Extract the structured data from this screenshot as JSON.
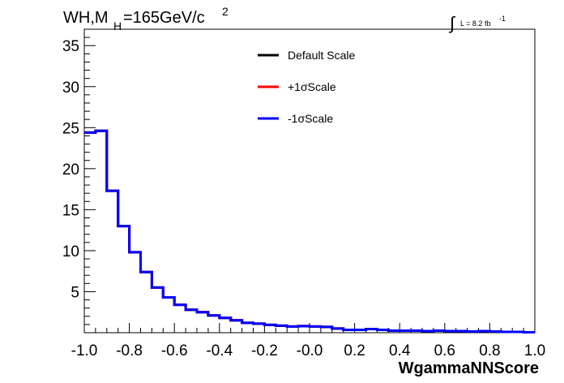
{
  "chart_data": {
    "type": "line",
    "title_parts": {
      "main": "WH,M",
      "sub": "H",
      "rest": "=165GeV/c",
      "sup": "2"
    },
    "lumi": {
      "integral": "∫",
      "text": "L = 8.2 fb",
      "sup": "-1"
    },
    "xlabel": "WgammaNNScore",
    "ylabel": "",
    "xlim": [
      -1.0,
      1.0
    ],
    "ylim": [
      0,
      37
    ],
    "x_ticks": [
      "-1.0",
      "-0.8",
      "-0.6",
      "-0.4",
      "-0.2",
      "-0.0",
      "0.2",
      "0.4",
      "0.6",
      "0.8",
      "1.0"
    ],
    "y_ticks": [
      "5",
      "10",
      "15",
      "20",
      "25",
      "30",
      "35"
    ],
    "bin_edges": [
      -1.0,
      -0.95,
      -0.9,
      -0.85,
      -0.8,
      -0.75,
      -0.7,
      -0.65,
      -0.6,
      -0.55,
      -0.5,
      -0.45,
      -0.4,
      -0.35,
      -0.3,
      -0.25,
      -0.2,
      -0.15,
      -0.1,
      -0.05,
      0.0,
      0.05,
      0.1,
      0.15,
      0.2,
      0.25,
      0.3,
      0.35,
      0.4,
      0.45,
      0.5,
      0.55,
      0.6,
      0.65,
      0.7,
      0.75,
      0.8,
      0.85,
      0.9,
      0.95,
      1.0
    ],
    "series": [
      {
        "name": "Default Scale",
        "color": "#000000",
        "values": [
          24.4,
          24.6,
          17.3,
          13.0,
          9.8,
          7.4,
          5.5,
          4.3,
          3.4,
          2.8,
          2.5,
          2.1,
          1.8,
          1.5,
          1.2,
          1.1,
          0.95,
          0.85,
          0.75,
          0.8,
          0.75,
          0.7,
          0.5,
          0.35,
          0.35,
          0.45,
          0.35,
          0.25,
          0.25,
          0.25,
          0.2,
          0.25,
          0.2,
          0.2,
          0.15,
          0.2,
          0.15,
          0.1,
          0.1,
          0.05
        ]
      },
      {
        "name": "+1σScale",
        "color": "#ff0000",
        "values": [
          24.4,
          24.6,
          17.3,
          13.0,
          9.8,
          7.4,
          5.5,
          4.3,
          3.4,
          2.8,
          2.5,
          2.1,
          1.8,
          1.5,
          1.2,
          1.1,
          0.95,
          0.85,
          0.75,
          0.8,
          0.75,
          0.7,
          0.5,
          0.35,
          0.35,
          0.45,
          0.35,
          0.25,
          0.25,
          0.25,
          0.2,
          0.25,
          0.2,
          0.2,
          0.15,
          0.2,
          0.15,
          0.1,
          0.1,
          0.05
        ]
      },
      {
        "name": "-1σScale",
        "color": "#0000ff",
        "values": [
          24.4,
          24.6,
          17.3,
          13.0,
          9.8,
          7.4,
          5.5,
          4.3,
          3.4,
          2.8,
          2.5,
          2.1,
          1.8,
          1.5,
          1.2,
          1.1,
          0.95,
          0.85,
          0.75,
          0.8,
          0.75,
          0.7,
          0.5,
          0.35,
          0.35,
          0.45,
          0.35,
          0.25,
          0.25,
          0.25,
          0.2,
          0.25,
          0.2,
          0.2,
          0.15,
          0.2,
          0.15,
          0.1,
          0.1,
          0.05
        ]
      }
    ],
    "legend": {
      "placement": "top-center"
    },
    "grid": false
  }
}
